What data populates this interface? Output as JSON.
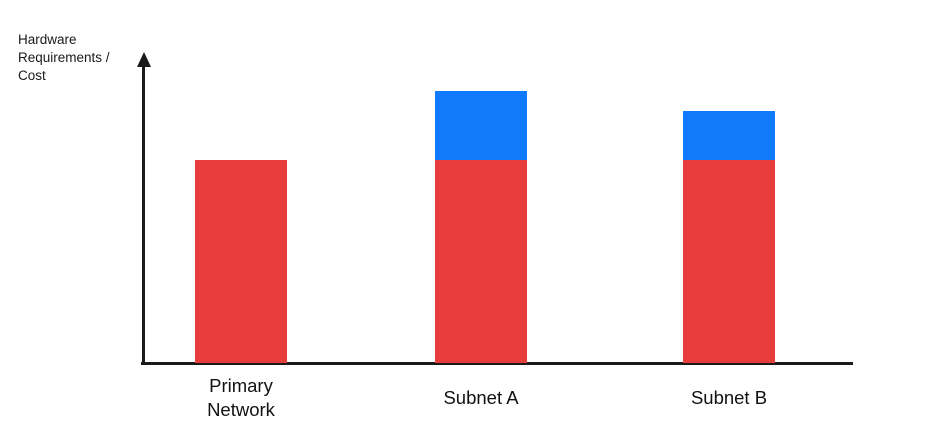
{
  "chart_data": {
    "type": "bar",
    "stacked": true,
    "title": "",
    "xlabel": "",
    "ylabel": "Hardware Requirements / Cost",
    "categories": [
      "Primary Network",
      "Subnet A",
      "Subnet B"
    ],
    "series": [
      {
        "name": "red",
        "color": "#E73B3C",
        "values": [
          100,
          100,
          100
        ]
      },
      {
        "name": "blue",
        "color": "#0F7AFA",
        "values": [
          0,
          34,
          24
        ]
      }
    ],
    "ylim": [
      0,
      150
    ],
    "y_ticks": [],
    "x_ticks_visible": false,
    "grid": false,
    "legend": false,
    "axis_color": "#1a1a1a",
    "y_axis_has_arrow": true,
    "x_axis_has_arrow": false
  }
}
